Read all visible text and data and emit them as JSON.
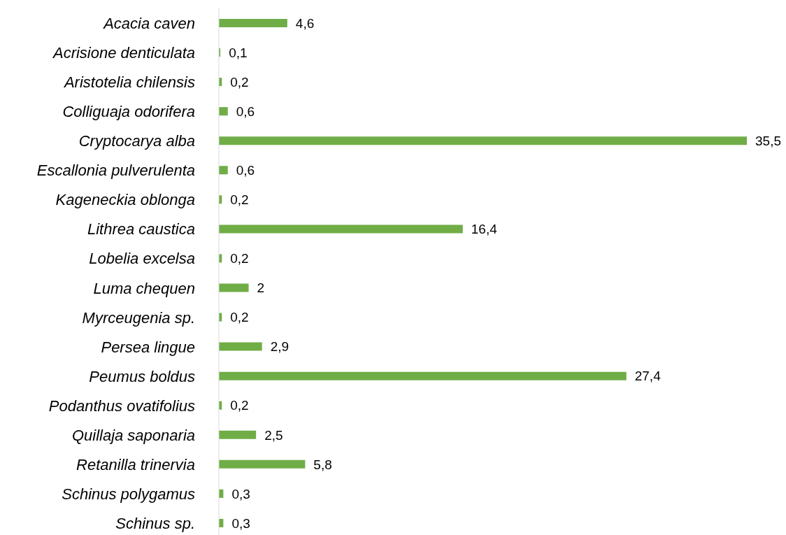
{
  "chart_data": {
    "type": "bar",
    "orientation": "horizontal",
    "color": "#70ad47",
    "categories": [
      "Acacia caven",
      "Acrisione denticulata",
      "Aristotelia chilensis",
      "Colliguaja odorifera",
      "Cryptocarya alba",
      "Escallonia pulverulenta",
      "Kageneckia oblonga",
      "Lithrea caustica",
      "Lobelia excelsa",
      "Luma chequen",
      "Myrceugenia sp.",
      "Persea lingue",
      "Peumus boldus",
      "Podanthus ovatifolius",
      "Quillaja saponaria",
      "Retanilla trinervia",
      "Schinus polygamus",
      "Schinus sp."
    ],
    "values": [
      4.6,
      0.1,
      0.2,
      0.6,
      35.5,
      0.6,
      0.2,
      16.4,
      0.2,
      2,
      0.2,
      2.9,
      27.4,
      0.2,
      2.5,
      5.8,
      0.3,
      0.3
    ],
    "value_labels": [
      "4,6",
      "0,1",
      "0,2",
      "0,6",
      "35,5",
      "0,6",
      "0,2",
      "16,4",
      "0,2",
      "2",
      "0,2",
      "2,9",
      "27,4",
      "0,2",
      "2,5",
      "5,8",
      "0,3",
      "0,3"
    ]
  }
}
